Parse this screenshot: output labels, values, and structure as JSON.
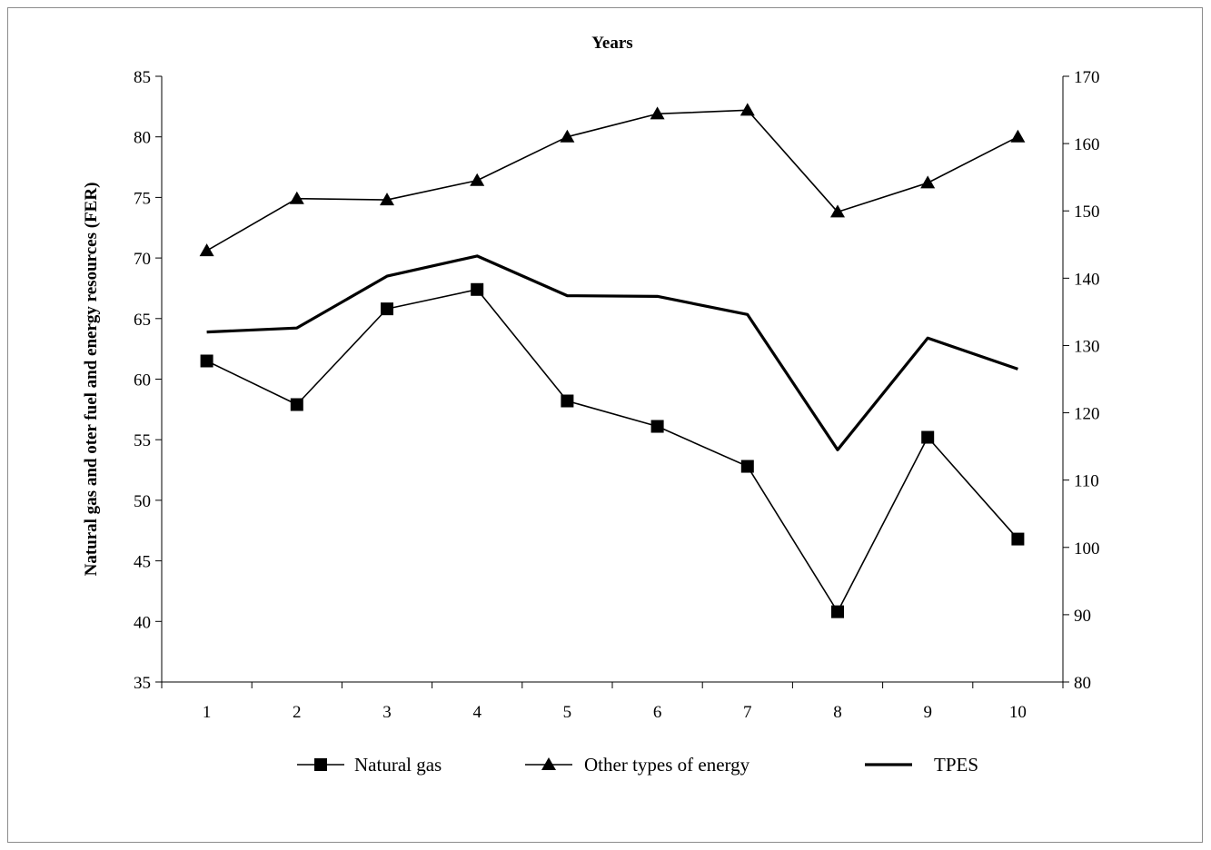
{
  "chart_data": {
    "type": "line",
    "title": "Years",
    "ylabel": "Natural gas and oter fuel and energy resources (FER)",
    "y2label": "",
    "x": [
      "1",
      "2",
      "3",
      "4",
      "5",
      "6",
      "7",
      "8",
      "9",
      "10"
    ],
    "ylim": [
      35,
      85
    ],
    "yticks": [
      35,
      40,
      45,
      50,
      55,
      60,
      65,
      70,
      75,
      80,
      85
    ],
    "y2lim": [
      80,
      170
    ],
    "y2ticks": [
      80,
      90,
      100,
      110,
      120,
      130,
      140,
      150,
      160,
      170
    ],
    "grid": false,
    "legend_position": "bottom",
    "series": [
      {
        "name": "Natural gas",
        "axis": "left",
        "marker": "square",
        "values": [
          61.5,
          57.9,
          65.8,
          67.4,
          58.2,
          56.1,
          52.8,
          40.8,
          55.2,
          46.8
        ]
      },
      {
        "name": "Other types of energy",
        "axis": "left",
        "marker": "triangle",
        "values": [
          70.6,
          74.9,
          74.8,
          76.4,
          80.0,
          81.9,
          82.2,
          73.8,
          76.2,
          80.0
        ]
      },
      {
        "name": "TPES",
        "axis": "right",
        "marker": "none",
        "values": [
          132.0,
          132.6,
          140.3,
          143.3,
          137.4,
          137.3,
          134.6,
          114.5,
          131.1,
          126.5
        ]
      }
    ],
    "line_color": "#000000"
  }
}
